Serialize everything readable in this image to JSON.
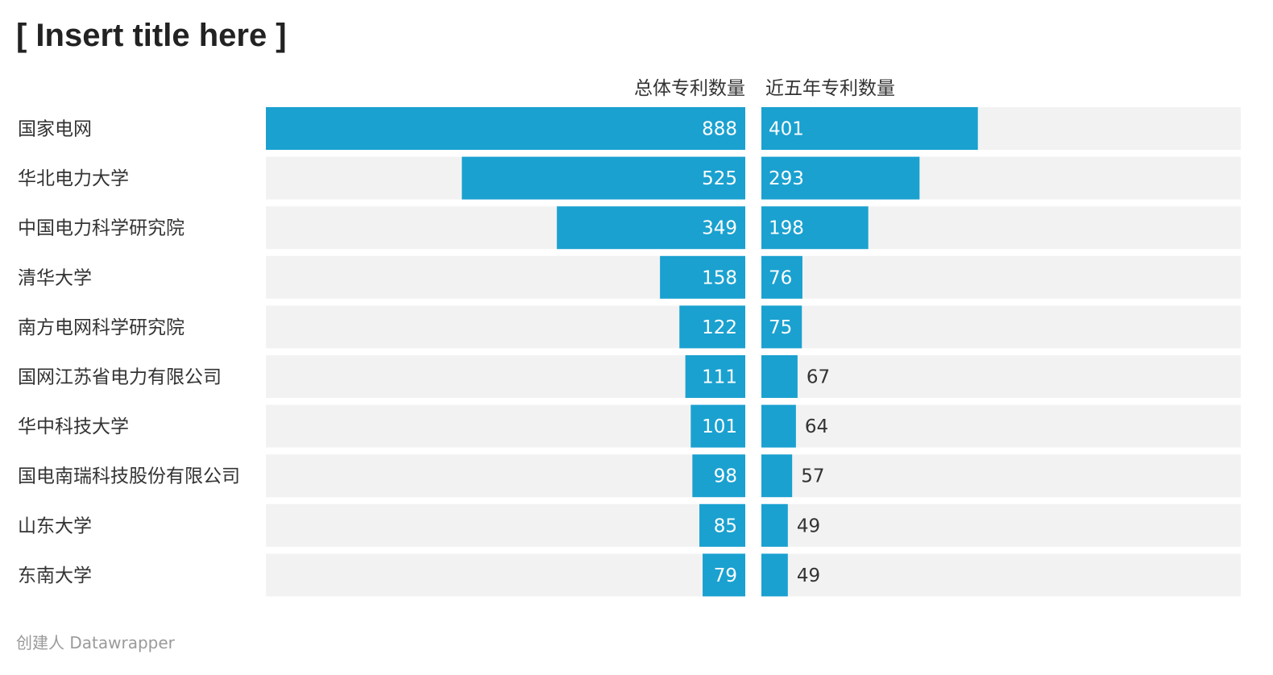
{
  "title": "[ Insert title here ]",
  "credit": "创建人 Datawrapper",
  "colors": {
    "bar": "#1aa1d0",
    "track": "#f2f2f2"
  },
  "chart_data": {
    "type": "bar",
    "orientation": "horizontal",
    "layout": "side-by-side split bars, first column aligned right, second column aligned left",
    "categories": [
      "国家电网",
      "华北电力大学",
      "中国电力科学研究院",
      "清华大学",
      "南方电网科学研究院",
      "国网江苏省电力有限公司",
      "华中科技大学",
      "国电南瑞科技股份有限公司",
      "山东大学",
      "东南大学"
    ],
    "series": [
      {
        "name": "总体专利数量",
        "values": [
          888,
          525,
          349,
          158,
          122,
          111,
          101,
          98,
          85,
          79
        ],
        "max": 888
      },
      {
        "name": "近五年专利数量",
        "values": [
          401,
          293,
          198,
          76,
          75,
          67,
          64,
          57,
          49,
          49
        ],
        "max": 888
      }
    ],
    "legend": "column headers above bars",
    "grid": false
  }
}
